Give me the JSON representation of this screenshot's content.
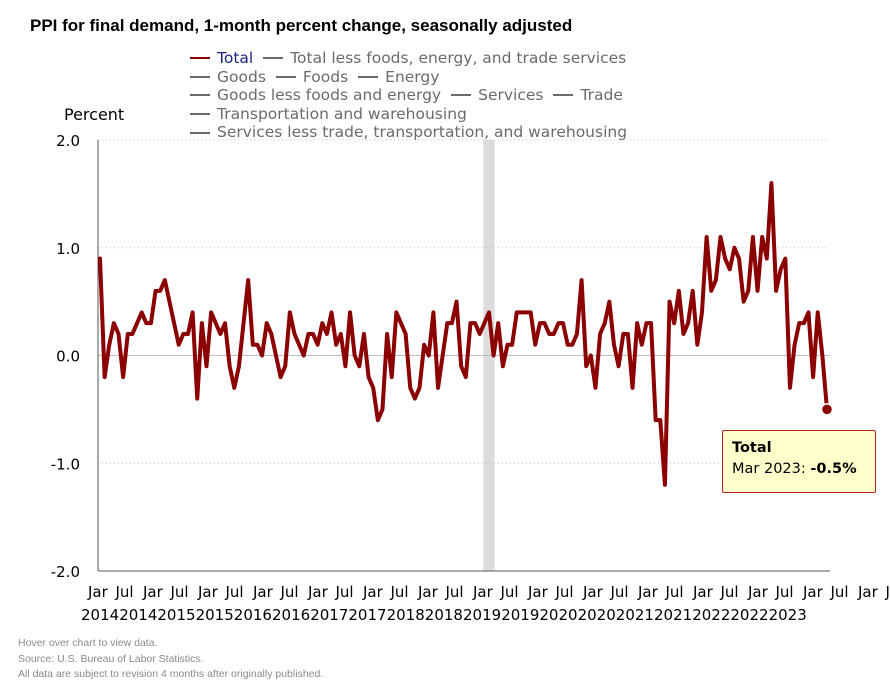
{
  "title": "PPI for final demand, 1-month percent change, seasonally adjusted",
  "legend": {
    "rows": [
      [
        {
          "label": "Total",
          "active": true
        },
        {
          "label": "Total less foods, energy, and trade services",
          "active": false
        }
      ],
      [
        {
          "label": "Goods",
          "active": false
        },
        {
          "label": "Foods",
          "active": false
        },
        {
          "label": "Energy",
          "active": false
        }
      ],
      [
        {
          "label": "Goods less foods and energy",
          "active": false
        },
        {
          "label": "Services",
          "active": false
        },
        {
          "label": "Trade",
          "active": false
        }
      ],
      [
        {
          "label": "Transportation and warehousing",
          "active": false
        }
      ],
      [
        {
          "label": "Services less trade, transportation, and warehousing",
          "active": false
        }
      ]
    ]
  },
  "tooltip": {
    "title": "Total",
    "label": "Mar 2023: ",
    "value": "-0.5%"
  },
  "notes": [
    "Hover over chart to view data.",
    "Source: U.S. Bureau of Labor Statistics.",
    "All data are subject to revision 4 months after originally published."
  ],
  "colors": {
    "series": "#8b0000",
    "recession": "#dcdcdc",
    "grid": "#bdbdbd",
    "axis": "#000000"
  },
  "chart_data": {
    "type": "line",
    "title": "PPI for final demand, 1-month percent change, seasonally adjusted",
    "ylabel": "Percent",
    "xlabel": "",
    "ylim": [
      -2.0,
      2.0
    ],
    "yticks": [
      2.0,
      1.0,
      0.0,
      -1.0,
      -2.0
    ],
    "ytick_labels": [
      "2.0",
      "1.0",
      "0.0",
      "-1.0",
      "-2.0"
    ],
    "grid": true,
    "start": "2013-03",
    "xtick_months": [
      "Jar",
      "Jul",
      "Jar",
      "Jul",
      "Jar",
      "Jul",
      "Jar",
      "Jul",
      "Jar",
      "Jul",
      "Jar",
      "Jul",
      "Jar",
      "Jul",
      "Jar",
      "Jul",
      "Jar",
      "Jul",
      "Jar",
      "Jul",
      "Jar",
      "Jul",
      "Jar",
      "Jul",
      "Jar",
      "Jul",
      "Jar",
      "Jul",
      "Jar",
      "Jul",
      "Jan"
    ],
    "xtick_years": [
      "2014",
      "2014",
      "2015",
      "2015",
      "2016",
      "2016",
      "2017",
      "2017",
      "2018",
      "2018",
      "2019",
      "2019",
      "2020",
      "2020",
      "2021",
      "2021",
      "2022",
      "2022",
      "2023"
    ],
    "shaded_period": {
      "label": "Recession",
      "start": "2020-02",
      "end": "2020-04"
    },
    "series": [
      {
        "name": "Total",
        "values": [
          0.9,
          -0.2,
          0.1,
          0.3,
          0.2,
          -0.2,
          0.2,
          0.2,
          0.3,
          0.4,
          0.3,
          0.3,
          0.6,
          0.6,
          0.7,
          0.5,
          0.3,
          0.1,
          0.2,
          0.2,
          0.4,
          -0.4,
          0.3,
          -0.1,
          0.4,
          0.3,
          0.2,
          0.3,
          -0.1,
          -0.3,
          -0.1,
          0.3,
          0.7,
          0.1,
          0.1,
          0.0,
          0.3,
          0.2,
          0.0,
          -0.2,
          -0.1,
          0.4,
          0.2,
          0.1,
          0.0,
          0.2,
          0.2,
          0.1,
          0.3,
          0.2,
          0.4,
          0.1,
          0.2,
          -0.1,
          0.4,
          0.0,
          -0.1,
          0.2,
          -0.2,
          -0.3,
          -0.6,
          -0.5,
          0.2,
          -0.2,
          0.4,
          0.3,
          0.2,
          -0.3,
          -0.4,
          -0.3,
          0.1,
          0.0,
          0.4,
          -0.3,
          0.0,
          0.3,
          0.3,
          0.5,
          -0.1,
          -0.2,
          0.3,
          0.3,
          0.2,
          0.3,
          0.4,
          0.0,
          0.3,
          -0.1,
          0.1,
          0.1,
          0.4,
          0.4,
          0.4,
          0.4,
          0.1,
          0.3,
          0.3,
          0.2,
          0.2,
          0.3,
          0.3,
          0.1,
          0.1,
          0.2,
          0.7,
          -0.1,
          0.0,
          -0.3,
          0.2,
          0.3,
          0.5,
          0.1,
          -0.1,
          0.2,
          0.2,
          -0.3,
          0.3,
          0.1,
          0.3,
          0.3,
          -0.6,
          -0.6,
          -1.2,
          0.5,
          0.3,
          0.6,
          0.2,
          0.3,
          0.6,
          0.1,
          0.4,
          1.1,
          0.6,
          0.7,
          1.1,
          0.9,
          0.8,
          1.0,
          0.9,
          0.5,
          0.6,
          1.1,
          0.6,
          1.1,
          0.9,
          1.6,
          0.6,
          0.8,
          0.9,
          -0.3,
          0.1,
          0.3,
          0.3,
          0.4,
          -0.2,
          0.4,
          0.0,
          -0.5
        ]
      }
    ]
  }
}
